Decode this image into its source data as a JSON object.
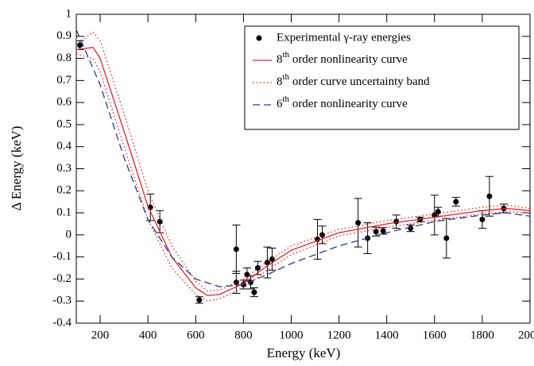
{
  "chart_data": {
    "type": "scatter_lines",
    "xlabel": "Energy (keV)",
    "ylabel": "Δ Energy (keV)",
    "xlim": [
      100,
      2000
    ],
    "xticks": [
      200,
      400,
      600,
      800,
      1000,
      1200,
      1400,
      1600,
      1800,
      2000
    ],
    "ylim": [
      -0.4,
      1
    ],
    "yticks": [
      -0.4,
      -0.3,
      -0.2,
      -0.1,
      0,
      0.1,
      0.2,
      0.3,
      0.4,
      0.5,
      0.6,
      0.7,
      0.8,
      0.9,
      1
    ],
    "legend": "upper right",
    "series": [
      {
        "name": "Experimental γ-ray energies",
        "kind": "points",
        "color": "#000000",
        "x": [
          115,
          410,
          450,
          615,
          770,
          770,
          800,
          815,
          830,
          845,
          860,
          900,
          920,
          1110,
          1130,
          1280,
          1320,
          1355,
          1385,
          1440,
          1500,
          1540,
          1600,
          1615,
          1650,
          1690,
          1800,
          1830,
          1890
        ],
        "values": [
          0.86,
          0.125,
          0.06,
          -0.295,
          -0.065,
          -0.215,
          -0.225,
          -0.18,
          -0.215,
          -0.26,
          -0.15,
          -0.125,
          -0.11,
          -0.02,
          0,
          0.055,
          -0.015,
          0.015,
          0.018,
          0.06,
          0.03,
          0.07,
          0.09,
          0.105,
          -0.015,
          0.15,
          0.07,
          0.175,
          0.12
        ],
        "errors": [
          0.02,
          0.06,
          0.05,
          0.015,
          0.11,
          0.05,
          0.02,
          0.03,
          0.03,
          0.02,
          0.03,
          0.07,
          0.05,
          0.09,
          0.04,
          0.11,
          0.07,
          0.02,
          0.015,
          0.03,
          0.015,
          0.01,
          0.09,
          0.02,
          0.09,
          0.02,
          0.04,
          0.09,
          0.02
        ]
      },
      {
        "name": "8th order nonlinearity curve",
        "kind": "line",
        "color": "#e8202a",
        "dash": "solid",
        "x": [
          100,
          170,
          200,
          300,
          400,
          500,
          600,
          650,
          700,
          800,
          900,
          1000,
          1200,
          1400,
          1600,
          1800,
          1900,
          2000
        ],
        "values": [
          0.84,
          0.85,
          0.8,
          0.47,
          0.13,
          -0.1,
          -0.24,
          -0.275,
          -0.27,
          -0.22,
          -0.14,
          -0.07,
          0.01,
          0.05,
          0.08,
          0.11,
          0.12,
          0.11
        ]
      },
      {
        "name": "8th order curve uncertainty band",
        "kind": "band",
        "color": "#e8202a",
        "dash": "dotted",
        "x": [
          100,
          170,
          200,
          300,
          400,
          500,
          600,
          650,
          700,
          800,
          900,
          1000,
          1200,
          1400,
          1600,
          1800,
          1900,
          2000
        ],
        "values": [
          0.86,
          0.92,
          0.88,
          0.55,
          0.2,
          -0.05,
          -0.21,
          -0.255,
          -0.25,
          -0.2,
          -0.12,
          -0.05,
          0.025,
          0.065,
          0.095,
          0.125,
          0.135,
          0.12
        ],
        "values_low": [
          0.82,
          0.8,
          0.74,
          0.4,
          0.07,
          -0.15,
          -0.27,
          -0.3,
          -0.29,
          -0.24,
          -0.16,
          -0.09,
          -0.005,
          0.035,
          0.065,
          0.095,
          0.105,
          0.1
        ]
      },
      {
        "name": "6th order nonlinearity curve",
        "kind": "line",
        "color": "#2b3a8c",
        "dash": "dashed",
        "x": [
          100,
          200,
          300,
          400,
          500,
          600,
          700,
          800,
          900,
          1000,
          1200,
          1400,
          1600,
          1800,
          1900,
          2000
        ],
        "values": [
          0.93,
          0.68,
          0.35,
          0.07,
          -0.1,
          -0.2,
          -0.235,
          -0.225,
          -0.18,
          -0.13,
          -0.05,
          0.01,
          0.06,
          0.09,
          0.1,
          0.085
        ]
      }
    ]
  }
}
